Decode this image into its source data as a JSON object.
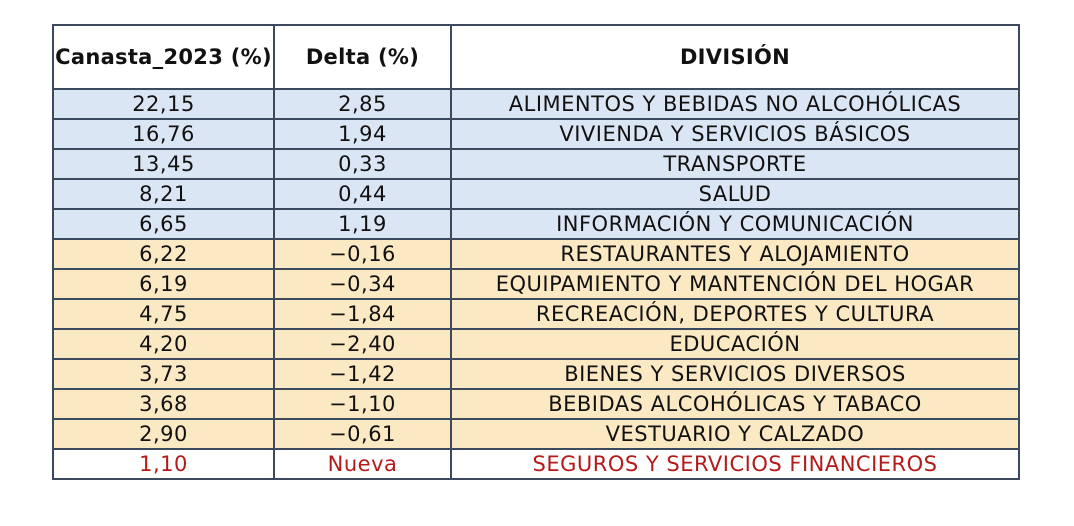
{
  "table": {
    "headers": {
      "weight": "Canasta_2023 (%)",
      "delta": "Delta (%)",
      "division": "DIVISIÓN"
    },
    "colors": {
      "positive_delta_fill": "#dbe6f4",
      "negative_delta_fill": "#fbe9c4",
      "new_item_text": "#b31b1b",
      "border": "#3b4a5e"
    },
    "rows": [
      {
        "weight": "22,15",
        "delta": "2,85",
        "division": "ALIMENTOS Y BEBIDAS NO ALCOHÓLICAS",
        "group": "up"
      },
      {
        "weight": "16,76",
        "delta": "1,94",
        "division": "VIVIENDA Y SERVICIOS BÁSICOS",
        "group": "up"
      },
      {
        "weight": "13,45",
        "delta": "0,33",
        "division": "TRANSPORTE",
        "group": "up"
      },
      {
        "weight": "8,21",
        "delta": "0,44",
        "division": "SALUD",
        "group": "up"
      },
      {
        "weight": "6,65",
        "delta": "1,19",
        "division": "INFORMACIÓN Y COMUNICACIÓN",
        "group": "up"
      },
      {
        "weight": "6,22",
        "delta": "−0,16",
        "division": "RESTAURANTES Y ALOJAMIENTO",
        "group": "down"
      },
      {
        "weight": "6,19",
        "delta": "−0,34",
        "division": "EQUIPAMIENTO Y MANTENCIÓN DEL HOGAR",
        "group": "down"
      },
      {
        "weight": "4,75",
        "delta": "−1,84",
        "division": "RECREACIÓN, DEPORTES Y CULTURA",
        "group": "down"
      },
      {
        "weight": "4,20",
        "delta": "−2,40",
        "division": "EDUCACIÓN",
        "group": "down"
      },
      {
        "weight": "3,73",
        "delta": "−1,42",
        "division": "BIENES Y SERVICIOS DIVERSOS",
        "group": "down"
      },
      {
        "weight": "3,68",
        "delta": "−1,10",
        "division": "BEBIDAS ALCOHÓLICAS Y TABACO",
        "group": "down"
      },
      {
        "weight": "2,90",
        "delta": "−0,61",
        "division": "VESTUARIO Y CALZADO",
        "group": "down"
      },
      {
        "weight": "1,10",
        "delta": "Nueva",
        "division": "SEGUROS Y SERVICIOS FINANCIEROS",
        "group": "new"
      }
    ]
  }
}
